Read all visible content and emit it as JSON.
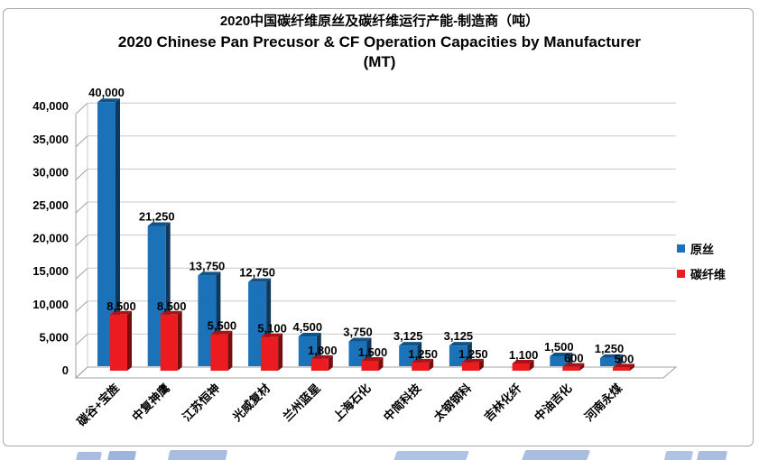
{
  "window": {
    "background": "#FFFFFF",
    "frame_border_color": "#A9A9A9",
    "watermark_color": "#A9BDE0"
  },
  "title": {
    "line1": "2020中国碳纤维原丝及碳纤维运行产能-制造商（吨）",
    "line2": "2020 Chinese Pan Precusor & CF Operation Capacities by Manufacturer",
    "line3": "(MT)"
  },
  "legend": {
    "position": "right",
    "items": [
      {
        "label": "原丝",
        "color": "#1B72B8"
      },
      {
        "label": "碳纤维",
        "color": "#EB1B20"
      }
    ]
  },
  "chart_data": {
    "type": "bar",
    "style": "3d-clustered-column",
    "title": "2020中国碳纤维原丝及碳纤维运行产能-制造商（吨） / 2020 Chinese Pan Precusor & CF Operation Capacities by Manufacturer (MT)",
    "categories": [
      "碳谷+宝旌",
      "中复神鹰",
      "江苏恒神",
      "光威复材",
      "兰州蓝星",
      "上海石化",
      "中简科技",
      "太钢钢科",
      "吉林化纤",
      "中油吉化",
      "河南永煤"
    ],
    "series": [
      {
        "name": "原丝",
        "color": "#1B72B8",
        "values": [
          40000,
          21250,
          13750,
          12750,
          4500,
          3750,
          3125,
          3125,
          null,
          1500,
          1250
        ]
      },
      {
        "name": "碳纤维",
        "color": "#EB1B20",
        "values": [
          8500,
          8500,
          5500,
          5100,
          1800,
          1500,
          1250,
          1250,
          1100,
          600,
          500
        ]
      }
    ],
    "data_labels": true,
    "xlabel": "",
    "ylabel": "",
    "ylim": [
      0,
      40000
    ],
    "ytick_step": 5000,
    "yticks": [
      "0",
      "5,000",
      "10,000",
      "15,000",
      "20,000",
      "25,000",
      "30,000",
      "35,000",
      "40,000"
    ],
    "grid": true,
    "legend_position": "right"
  }
}
